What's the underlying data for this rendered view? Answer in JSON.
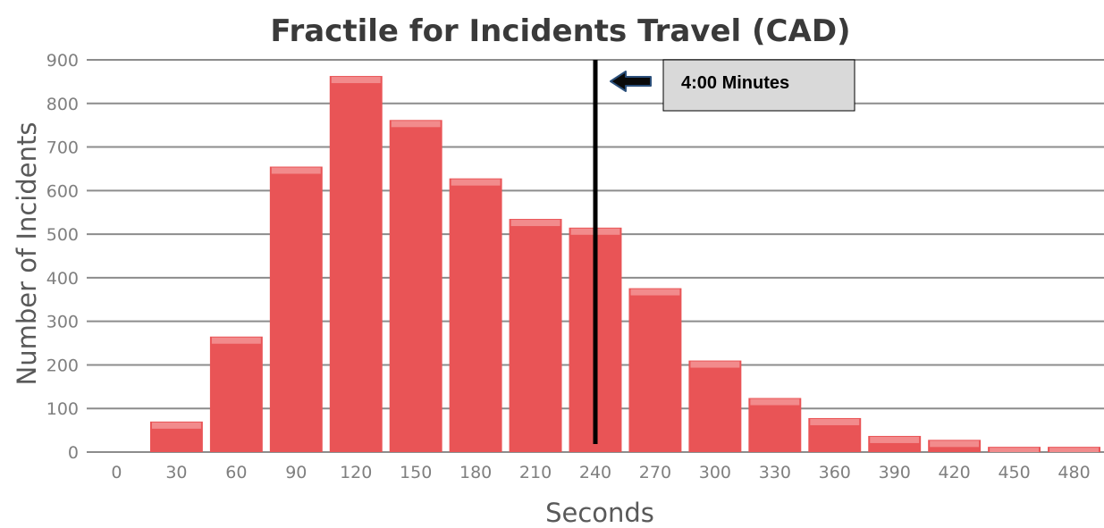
{
  "chart_data": {
    "type": "bar",
    "title": "Fractile for Incidents Travel (CAD)",
    "xlabel": "Seconds",
    "ylabel": "Number of Incidents",
    "categories": [
      "0",
      "30",
      "60",
      "90",
      "120",
      "150",
      "180",
      "210",
      "240",
      "270",
      "300",
      "330",
      "360",
      "390",
      "420",
      "450",
      "480"
    ],
    "values": [
      0,
      70,
      265,
      655,
      863,
      762,
      628,
      535,
      515,
      376,
      210,
      124,
      78,
      37,
      28,
      12,
      12
    ],
    "ylim": [
      0,
      900
    ],
    "yticks": [
      0,
      100,
      200,
      300,
      400,
      500,
      600,
      700,
      800,
      900
    ],
    "grid": true,
    "legend": "none",
    "bar_color": "#e95456",
    "reference_line": {
      "at_category": "240",
      "color": "#000000"
    },
    "annotation": {
      "text": "4:00 Minutes",
      "arrow_direction": "left"
    }
  }
}
